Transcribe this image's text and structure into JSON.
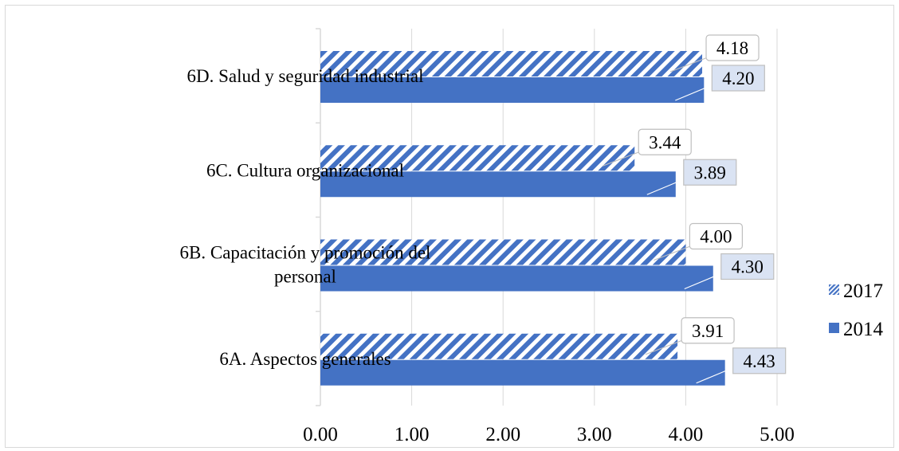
{
  "chart_data": {
    "type": "bar",
    "orientation": "horizontal",
    "categories": [
      [
        "6D. Salud y seguridad industrial"
      ],
      [
        "6C. Cultura organizacional"
      ],
      [
        "6B. Capacitación y promoción del",
        "personal"
      ],
      [
        "6A. Aspectos generales"
      ]
    ],
    "series": [
      {
        "name": "2017",
        "pattern": "diagonal-stripes",
        "values": [
          4.18,
          3.44,
          4.0,
          3.91
        ],
        "labels": [
          "4.18",
          "3.44",
          "4.00",
          "3.91"
        ]
      },
      {
        "name": "2014",
        "pattern": "solid",
        "values": [
          4.2,
          3.89,
          4.3,
          4.43
        ],
        "labels": [
          "4.20",
          "3.89",
          "4.30",
          "4.43"
        ]
      }
    ],
    "x_ticks": [
      "0.00",
      "1.00",
      "2.00",
      "3.00",
      "4.00",
      "5.00"
    ],
    "xlim": [
      0,
      5
    ],
    "grid": "vertical",
    "legend_position": "right",
    "colors": {
      "bar": "#4472C4",
      "grid": "#d9d9d9",
      "label_fill_2014": "#dae3f3",
      "label_border": "#bfbfbf"
    }
  }
}
